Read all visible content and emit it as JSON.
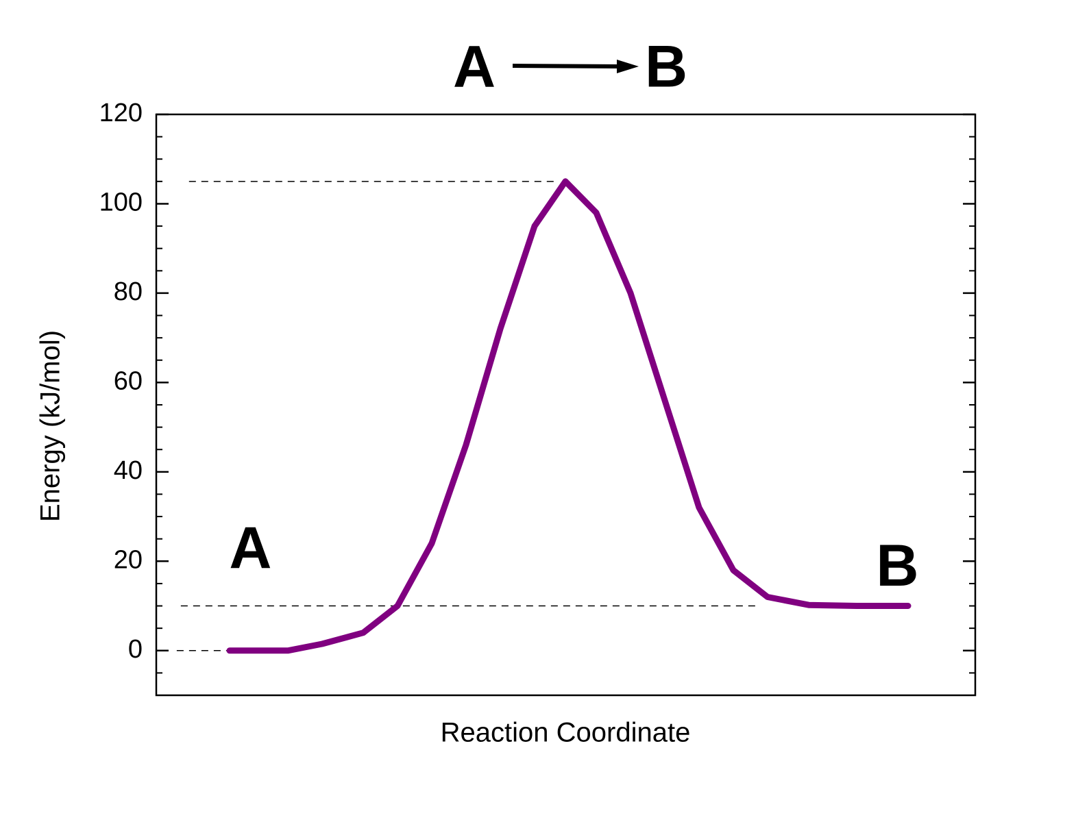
{
  "chart_data": {
    "type": "line",
    "title": {
      "reactant": "A",
      "product": "B"
    },
    "xlabel": "Reaction Coordinate",
    "ylabel": "Energy (kJ/mol)",
    "xlim": [
      0,
      100
    ],
    "ylim": [
      -10,
      120
    ],
    "yticks": [
      0,
      20,
      40,
      60,
      80,
      100,
      120
    ],
    "minor_yticks": [
      -5,
      5,
      10,
      15,
      25,
      30,
      35,
      45,
      50,
      55,
      65,
      70,
      75,
      85,
      90,
      95,
      105,
      110,
      115
    ],
    "x": [
      8.95,
      16.07,
      20.25,
      25.27,
      29.46,
      33.64,
      37.82,
      42.01,
      46.19,
      49.96,
      53.72,
      57.91,
      62.09,
      66.28,
      70.46,
      74.64,
      79.67,
      85.52,
      91.8
    ],
    "series": [
      {
        "color": "#800080",
        "values": [
          0,
          0,
          1.5,
          4,
          10,
          24,
          46,
          72,
          95,
          105,
          98,
          80,
          56,
          32,
          18,
          12,
          10.2,
          10,
          10
        ]
      }
    ],
    "reference_lines": [
      {
        "y": 105,
        "x": [
          4,
          48.7
        ]
      },
      {
        "y": 10,
        "x": [
          3,
          73.5
        ]
      },
      {
        "y": 0,
        "x": [
          2.5,
          8.95
        ]
      }
    ],
    "annotations": [
      {
        "text": "A",
        "x": 11.5,
        "y": 22
      },
      {
        "text": "B",
        "x": 90.5,
        "y": 18
      }
    ]
  }
}
